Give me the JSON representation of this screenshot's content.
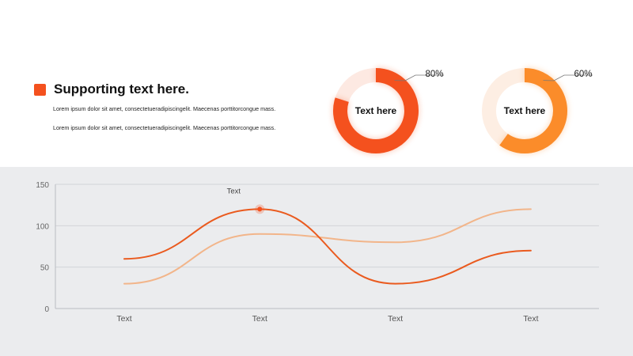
{
  "colors": {
    "accent": "#f4511e",
    "accent_secondary": "#fb8c2a",
    "line_primary": "#ea5a1e",
    "line_secondary": "#f2b58a",
    "bottom_bg": "#ebecee"
  },
  "header": {
    "title": "Supporting text here.",
    "paragraphs": [
      "Lorem ipsum dolor sit amet, consectetueradipiscingelit. Maecenas porttitorcongue mass.",
      "Lorem ipsum dolor sit amet, consectetueradipiscingelit. Maecenas porttitorcongue mass."
    ]
  },
  "donuts": [
    {
      "label": "Text here",
      "percent": 80,
      "percent_label": "80%",
      "color": "#f4511e",
      "track_color": "#fde9e2"
    },
    {
      "label": "Text here",
      "percent": 60,
      "percent_label": "60%",
      "color": "#fb8c2a",
      "track_color": "#fdeee3"
    }
  ],
  "chart_data": {
    "type": "line",
    "categories": [
      "Text",
      "Text",
      "Text",
      "Text"
    ],
    "series": [
      {
        "values": [
          60,
          120,
          30,
          70
        ],
        "color": "#ea5a1e"
      },
      {
        "values": [
          30,
          90,
          80,
          120
        ],
        "color": "#f2b58a"
      }
    ],
    "ylim": [
      0,
      150
    ],
    "yticks": [
      0,
      50,
      100,
      150
    ],
    "grid": true,
    "annotation": {
      "text": "Text",
      "series": 0,
      "index": 1
    }
  }
}
